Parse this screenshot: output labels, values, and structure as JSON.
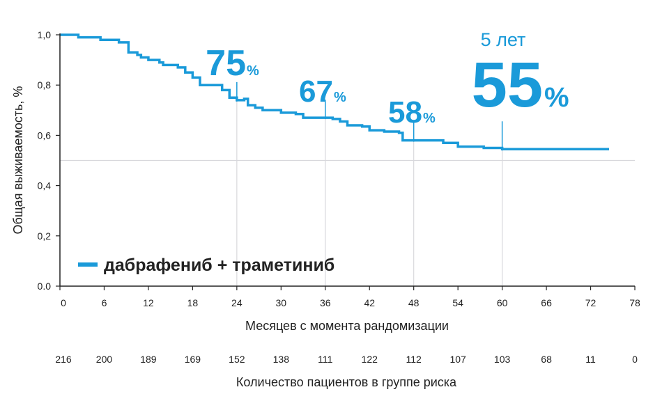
{
  "chart_data": {
    "type": "line",
    "xlabel": "Месяцев с момента рандомизации",
    "ylabel": "Общая выживаемость, %",
    "xlim": [
      0,
      78
    ],
    "ylim": [
      0,
      1.0
    ],
    "x_ticks": [
      "0",
      "6",
      "12",
      "18",
      "24",
      "30",
      "36",
      "42",
      "48",
      "54",
      "60",
      "66",
      "72",
      "78"
    ],
    "y_ticks": [
      "0.0",
      "0,2",
      "0,4",
      "0,6",
      "0,8",
      "1,0"
    ],
    "reference_line_y": 0.5,
    "grid": false,
    "legend_position": "bottom-left",
    "series": [
      {
        "name": "дабрафениб + траметиниб",
        "color": "#1a9ad9",
        "step": true,
        "points": [
          [
            0,
            1.0
          ],
          [
            2.5,
            0.99
          ],
          [
            5,
            0.99
          ],
          [
            5.5,
            0.98
          ],
          [
            7,
            0.98
          ],
          [
            8,
            0.97
          ],
          [
            9,
            0.97
          ],
          [
            9.3,
            0.93
          ],
          [
            10.5,
            0.92
          ],
          [
            11,
            0.91
          ],
          [
            12,
            0.9
          ],
          [
            13.5,
            0.89
          ],
          [
            14,
            0.88
          ],
          [
            16,
            0.87
          ],
          [
            17,
            0.85
          ],
          [
            18,
            0.83
          ],
          [
            19,
            0.8
          ],
          [
            21,
            0.8
          ],
          [
            22,
            0.78
          ],
          [
            23,
            0.75
          ],
          [
            24,
            0.74
          ],
          [
            25,
            0.745
          ],
          [
            25.5,
            0.72
          ],
          [
            26.5,
            0.71
          ],
          [
            27.5,
            0.7
          ],
          [
            30,
            0.69
          ],
          [
            32,
            0.685
          ],
          [
            33,
            0.67
          ],
          [
            36,
            0.67
          ],
          [
            37,
            0.665
          ],
          [
            38,
            0.655
          ],
          [
            39,
            0.64
          ],
          [
            41,
            0.635
          ],
          [
            42,
            0.62
          ],
          [
            44,
            0.615
          ],
          [
            46,
            0.61
          ],
          [
            46.5,
            0.58
          ],
          [
            48,
            0.58
          ],
          [
            51,
            0.58
          ],
          [
            52,
            0.57
          ],
          [
            54,
            0.555
          ],
          [
            57.5,
            0.55
          ],
          [
            60,
            0.545
          ],
          [
            74.5,
            0.545
          ]
        ]
      }
    ],
    "annotations": [
      {
        "x": 24,
        "value": "75",
        "unit": "%"
      },
      {
        "x": 36,
        "value": "67",
        "unit": "%"
      },
      {
        "x": 48,
        "value": "58",
        "unit": "%"
      },
      {
        "x": 60,
        "value": "55",
        "unit": "%",
        "caption": "5 лет"
      }
    ],
    "risk_table": {
      "title": "Количество пациентов в группе риска",
      "values": [
        "216",
        "200",
        "189",
        "169",
        "152",
        "138",
        "111",
        "122",
        "112",
        "107",
        "103",
        "68",
        "11",
        "0"
      ]
    }
  }
}
